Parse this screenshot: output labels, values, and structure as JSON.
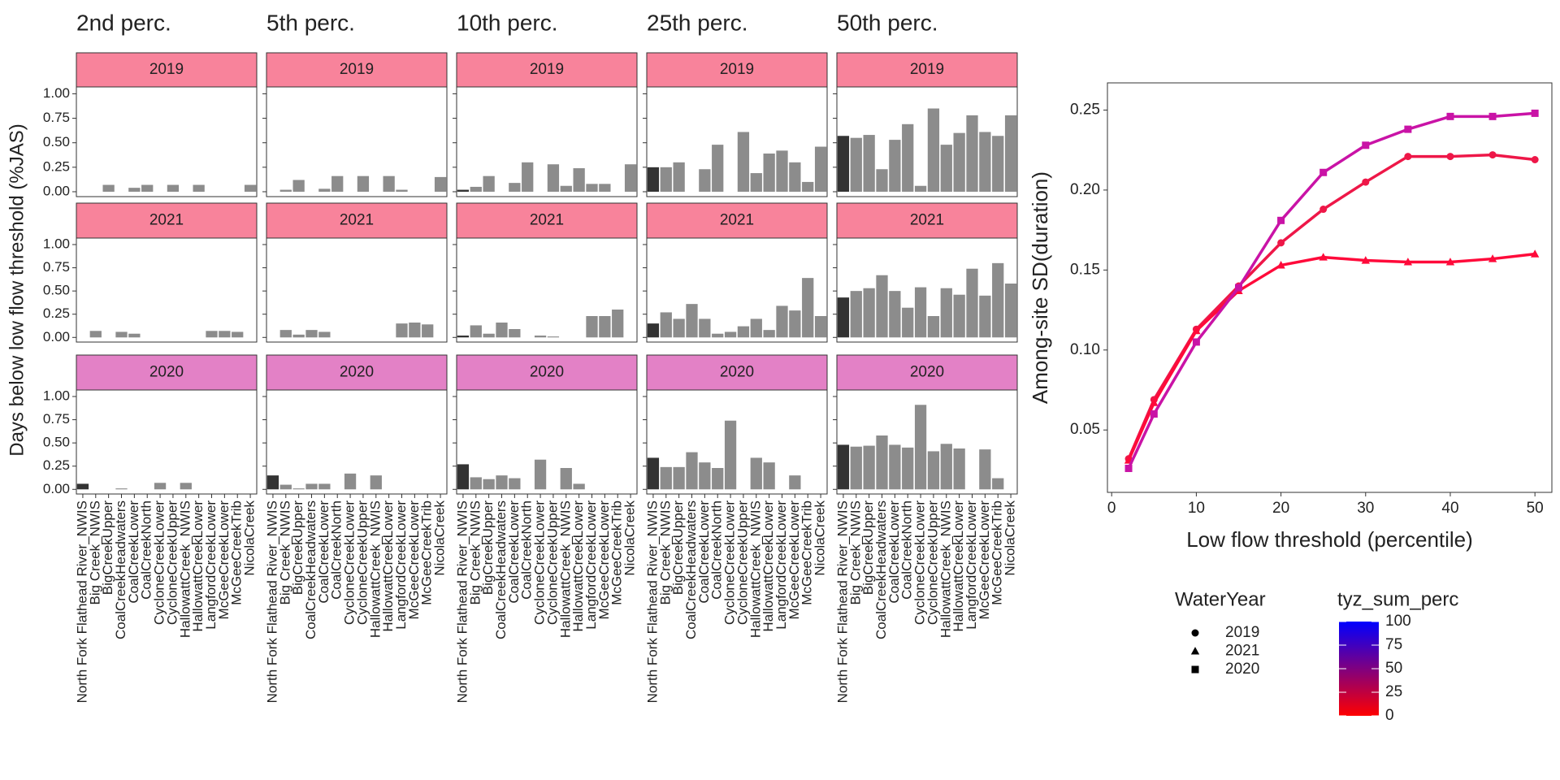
{
  "chart_data": [
    {
      "type": "facet_bar",
      "y_title": "Days below low flow threshold (%JAS)",
      "categories": [
        "North Fork Flathead River_NWIS",
        "Big Creek_NWIS",
        "BigCreekUpper",
        "CoalCreekHeadwaters",
        "CoalCreekLower",
        "CoalCreekNorth",
        "CycloneCreekLower",
        "CycloneCreekUpper",
        "HallowattCreek_NWIS",
        "HallowattCreekLower",
        "LangfordCreekLower",
        "McGeeCreekLower",
        "McGeeCreekTrib",
        "NicolaCreek"
      ],
      "bar_colors": [
        "#333333",
        "#8c8c8c",
        "#8c8c8c",
        "#8c8c8c",
        "#8c8c8c",
        "#8c8c8c",
        "#8c8c8c",
        "#8c8c8c",
        "#8c8c8c",
        "#8c8c8c",
        "#8c8c8c",
        "#8c8c8c",
        "#8c8c8c",
        "#8c8c8c"
      ],
      "ylim": [
        -0.05,
        1.07
      ],
      "yticks": [
        {
          "value": 0,
          "label": "0.00"
        },
        0.25,
        {
          "value": 0.5,
          "label": "0.50"
        },
        0.75,
        {
          "value": 1,
          "label": "1.00"
        }
      ],
      "columns": [
        {
          "title": "2nd perc.",
          "rows": [
            {
              "strip": "2019",
              "strip_color": "#f8839b",
              "values": [
                0,
                0,
                0.07,
                0,
                0.04,
                0.07,
                0,
                0.07,
                0,
                0.07,
                0,
                0,
                0,
                0.07
              ]
            },
            {
              "strip": "2021",
              "strip_color": "#f8839b",
              "values": [
                0,
                0.07,
                0,
                0.06,
                0.04,
                0,
                0,
                0,
                0,
                0,
                0.07,
                0.07,
                0.06,
                0
              ]
            },
            {
              "strip": "2020",
              "strip_color": "#e381c6",
              "values": [
                0.06,
                0,
                0,
                0.01,
                0,
                0,
                0.07,
                0,
                0.07,
                0,
                0,
                0,
                0,
                0
              ]
            }
          ]
        },
        {
          "title": "5th perc.",
          "rows": [
            {
              "strip": "2019",
              "strip_color": "#f8839b",
              "values": [
                0,
                0.02,
                0.12,
                0,
                0.03,
                0.16,
                0,
                0.16,
                0,
                0.16,
                0.02,
                0,
                0,
                0.15
              ]
            },
            {
              "strip": "2021",
              "strip_color": "#f8839b",
              "values": [
                0,
                0.08,
                0.03,
                0.08,
                0.06,
                0,
                0,
                0,
                0,
                0,
                0.15,
                0.16,
                0.14,
                0
              ]
            },
            {
              "strip": "2020",
              "strip_color": "#e381c6",
              "values": [
                0.15,
                0.05,
                0.01,
                0.06,
                0.06,
                0,
                0.17,
                0,
                0.15,
                0,
                0,
                0,
                0,
                0
              ]
            }
          ]
        },
        {
          "title": "10th perc.",
          "rows": [
            {
              "strip": "2019",
              "strip_color": "#f8839b",
              "values": [
                0.02,
                0.05,
                0.16,
                0,
                0.09,
                0.3,
                0,
                0.28,
                0.06,
                0.24,
                0.08,
                0.08,
                0,
                0.28
              ]
            },
            {
              "strip": "2021",
              "strip_color": "#f8839b",
              "values": [
                0.02,
                0.13,
                0.04,
                0.16,
                0.09,
                0,
                0.02,
                0.01,
                0,
                0,
                0.23,
                0.23,
                0.3,
                0
              ]
            },
            {
              "strip": "2020",
              "strip_color": "#e381c6",
              "values": [
                0.27,
                0.13,
                0.11,
                0.15,
                0.12,
                0,
                0.32,
                0,
                0.23,
                0.06,
                0,
                0,
                0,
                0
              ]
            }
          ]
        },
        {
          "title": "25th perc.",
          "rows": [
            {
              "strip": "2019",
              "strip_color": "#f8839b",
              "values": [
                0.25,
                0.25,
                0.3,
                0,
                0.23,
                0.48,
                0,
                0.61,
                0.19,
                0.39,
                0.42,
                0.3,
                0.1,
                0.46
              ]
            },
            {
              "strip": "2021",
              "strip_color": "#f8839b",
              "values": [
                0.15,
                0.27,
                0.2,
                0.36,
                0.2,
                0.04,
                0.06,
                0.12,
                0.2,
                0.08,
                0.34,
                0.29,
                0.64,
                0.23
              ]
            },
            {
              "strip": "2020",
              "strip_color": "#e381c6",
              "values": [
                0.34,
                0.24,
                0.24,
                0.4,
                0.29,
                0.23,
                0.74,
                0,
                0.34,
                0.29,
                0,
                0.15,
                0,
                0
              ]
            }
          ]
        },
        {
          "title": "50th perc.",
          "rows": [
            {
              "strip": "2019",
              "strip_color": "#f8839b",
              "values": [
                0.57,
                0.55,
                0.58,
                0.23,
                0.53,
                0.69,
                0.06,
                0.85,
                0.48,
                0.6,
                0.78,
                0.61,
                0.57,
                0.78
              ]
            },
            {
              "strip": "2021",
              "strip_color": "#f8839b",
              "values": [
                0.43,
                0.5,
                0.53,
                0.67,
                0.5,
                0.32,
                0.54,
                0.23,
                0.53,
                0.46,
                0.74,
                0.45,
                0.8,
                0.58
              ]
            },
            {
              "strip": "2020",
              "strip_color": "#e381c6",
              "values": [
                0.48,
                0.46,
                0.47,
                0.58,
                0.48,
                0.45,
                0.91,
                0.41,
                0.49,
                0.44,
                0,
                0.43,
                0.12,
                0
              ]
            }
          ]
        }
      ]
    },
    {
      "type": "line",
      "x_title": "Low flow threshold (percentile)",
      "y_title": "Among-site SD(duration)",
      "x": [
        2,
        5,
        10,
        15,
        20,
        25,
        30,
        35,
        40,
        45,
        50
      ],
      "xlim": [
        -0.5,
        52
      ],
      "ylim": [
        0.011,
        0.267
      ],
      "xticks": [
        0,
        10,
        20,
        30,
        40,
        50
      ],
      "yticks": [
        0.05,
        {
          "value": 0.1,
          "label": "0.10"
        },
        0.15,
        {
          "value": 0.2,
          "label": "0.20"
        },
        0.25
      ],
      "grid": false,
      "legend_title": "WaterYear",
      "series": [
        {
          "name": "2019",
          "shape": "circle",
          "color": "#ee1748",
          "values": [
            0.032,
            0.069,
            0.113,
            0.14,
            0.167,
            0.188,
            0.205,
            0.221,
            0.221,
            0.222,
            0.219
          ]
        },
        {
          "name": "2021",
          "shape": "triangle",
          "color": "#ff0a3a",
          "values": [
            0.031,
            0.067,
            0.112,
            0.137,
            0.153,
            0.158,
            0.156,
            0.155,
            0.155,
            0.157,
            0.16
          ]
        },
        {
          "name": "2020",
          "shape": "square",
          "color": "#c913a6",
          "values": [
            0.026,
            0.06,
            0.105,
            0.139,
            0.181,
            0.211,
            0.228,
            0.238,
            0.246,
            0.246,
            0.248
          ]
        }
      ],
      "colorbar": {
        "title": "tyz_sum_perc",
        "lim": [
          0,
          100
        ],
        "ticks": [
          0,
          25,
          50,
          75,
          100
        ],
        "colors": [
          "#ff0000",
          "#0000ff"
        ]
      }
    }
  ]
}
